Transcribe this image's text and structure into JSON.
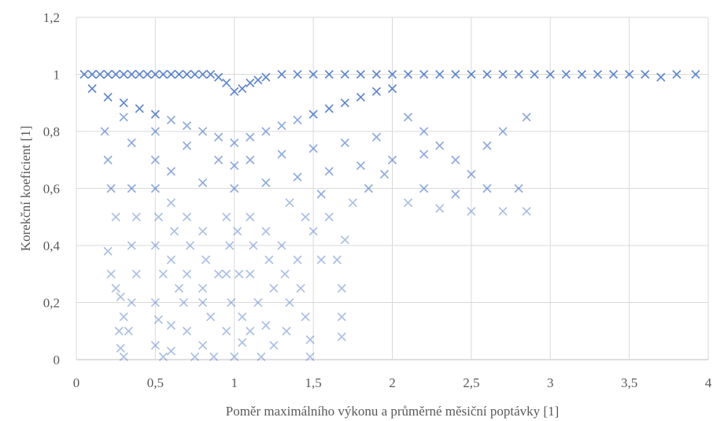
{
  "chart_data": {
    "type": "scatter",
    "xlabel": "Poměr maximálního  výkonu a průměrné měsiční poptávky [1]",
    "ylabel": "Korekční koeficient [1]",
    "xlim": [
      0,
      4
    ],
    "ylim": [
      0,
      1.2
    ],
    "x_ticks": [
      "0",
      "0,5",
      "1",
      "1,5",
      "2",
      "2,5",
      "3",
      "3,5",
      "4"
    ],
    "y_ticks": [
      "0",
      "0,2",
      "0,4",
      "0,6",
      "0,8",
      "1",
      "1,2"
    ],
    "grid": "major gridlines on both axes",
    "marker": "x",
    "marker_color": "#4472c4",
    "series": [
      {
        "points": [
          [
            0.05,
            1.0
          ],
          [
            0.1,
            1.0
          ],
          [
            0.15,
            1.0
          ],
          [
            0.2,
            1.0
          ],
          [
            0.25,
            1.0
          ],
          [
            0.3,
            1.0
          ],
          [
            0.35,
            1.0
          ],
          [
            0.4,
            1.0
          ],
          [
            0.45,
            1.0
          ],
          [
            0.5,
            1.0
          ],
          [
            0.55,
            1.0
          ],
          [
            0.6,
            1.0
          ],
          [
            0.65,
            1.0
          ],
          [
            0.7,
            1.0
          ],
          [
            0.75,
            1.0
          ],
          [
            0.8,
            1.0
          ],
          [
            0.85,
            1.0
          ],
          [
            0.9,
            0.99
          ],
          [
            0.95,
            0.97
          ],
          [
            1.0,
            0.94
          ],
          [
            1.05,
            0.95
          ],
          [
            1.1,
            0.97
          ],
          [
            1.15,
            0.98
          ],
          [
            1.2,
            0.99
          ],
          [
            1.3,
            1.0
          ],
          [
            1.4,
            1.0
          ],
          [
            1.5,
            1.0
          ],
          [
            1.6,
            1.0
          ],
          [
            1.7,
            1.0
          ],
          [
            1.8,
            1.0
          ],
          [
            1.9,
            1.0
          ],
          [
            2.0,
            1.0
          ],
          [
            2.1,
            1.0
          ],
          [
            2.2,
            1.0
          ],
          [
            2.3,
            1.0
          ],
          [
            2.4,
            1.0
          ],
          [
            2.5,
            1.0
          ],
          [
            2.6,
            1.0
          ],
          [
            2.7,
            1.0
          ],
          [
            2.8,
            1.0
          ],
          [
            2.9,
            1.0
          ],
          [
            3.0,
            1.0
          ],
          [
            3.1,
            1.0
          ],
          [
            3.2,
            1.0
          ],
          [
            3.3,
            1.0
          ],
          [
            3.4,
            1.0
          ],
          [
            3.5,
            1.0
          ],
          [
            3.6,
            1.0
          ],
          [
            3.7,
            0.99
          ],
          [
            3.8,
            1.0
          ],
          [
            3.92,
            1.0
          ],
          [
            0.1,
            0.95
          ],
          [
            0.2,
            0.92
          ],
          [
            0.3,
            0.9
          ],
          [
            0.4,
            0.88
          ],
          [
            0.5,
            0.86
          ],
          [
            0.6,
            0.84
          ],
          [
            0.7,
            0.82
          ],
          [
            0.8,
            0.8
          ],
          [
            0.9,
            0.78
          ],
          [
            1.0,
            0.76
          ],
          [
            1.1,
            0.78
          ],
          [
            1.2,
            0.8
          ],
          [
            1.3,
            0.82
          ],
          [
            1.4,
            0.84
          ],
          [
            1.5,
            0.86
          ],
          [
            1.6,
            0.88
          ],
          [
            1.7,
            0.9
          ],
          [
            1.8,
            0.92
          ],
          [
            1.9,
            0.94
          ],
          [
            2.0,
            0.95
          ],
          [
            0.3,
            0.85
          ],
          [
            0.5,
            0.8
          ],
          [
            0.7,
            0.75
          ],
          [
            0.9,
            0.7
          ],
          [
            1.0,
            0.68
          ],
          [
            1.1,
            0.7
          ],
          [
            1.3,
            0.72
          ],
          [
            1.5,
            0.74
          ],
          [
            1.7,
            0.76
          ],
          [
            1.9,
            0.78
          ],
          [
            0.5,
            0.7
          ],
          [
            0.6,
            0.66
          ],
          [
            0.8,
            0.62
          ],
          [
            1.0,
            0.6
          ],
          [
            1.2,
            0.62
          ],
          [
            1.4,
            0.64
          ],
          [
            1.6,
            0.66
          ],
          [
            1.8,
            0.68
          ],
          [
            2.0,
            0.7
          ],
          [
            2.2,
            0.72
          ],
          [
            2.1,
            0.85
          ],
          [
            2.2,
            0.8
          ],
          [
            2.3,
            0.75
          ],
          [
            2.4,
            0.7
          ],
          [
            2.5,
            0.65
          ],
          [
            2.6,
            0.75
          ],
          [
            2.7,
            0.8
          ],
          [
            2.85,
            0.85
          ],
          [
            2.1,
            0.55
          ],
          [
            2.3,
            0.53
          ],
          [
            2.5,
            0.52
          ],
          [
            2.7,
            0.52
          ],
          [
            2.85,
            0.52
          ],
          [
            2.2,
            0.6
          ],
          [
            2.4,
            0.58
          ],
          [
            2.6,
            0.6
          ],
          [
            2.8,
            0.6
          ],
          [
            0.18,
            0.8
          ],
          [
            0.2,
            0.7
          ],
          [
            0.22,
            0.6
          ],
          [
            0.25,
            0.5
          ],
          [
            0.2,
            0.38
          ],
          [
            0.22,
            0.3
          ],
          [
            0.25,
            0.25
          ],
          [
            0.28,
            0.22
          ],
          [
            0.3,
            0.15
          ],
          [
            0.27,
            0.1
          ],
          [
            0.28,
            0.04
          ],
          [
            0.3,
            0.01
          ],
          [
            0.35,
            0.76
          ],
          [
            0.35,
            0.6
          ],
          [
            0.38,
            0.5
          ],
          [
            0.35,
            0.4
          ],
          [
            0.38,
            0.3
          ],
          [
            0.35,
            0.2
          ],
          [
            0.33,
            0.1
          ],
          [
            0.5,
            0.6
          ],
          [
            0.52,
            0.5
          ],
          [
            0.5,
            0.4
          ],
          [
            0.55,
            0.3
          ],
          [
            0.5,
            0.2
          ],
          [
            0.52,
            0.14
          ],
          [
            0.5,
            0.05
          ],
          [
            0.55,
            0.01
          ],
          [
            0.6,
            0.55
          ],
          [
            0.62,
            0.45
          ],
          [
            0.6,
            0.35
          ],
          [
            0.65,
            0.25
          ],
          [
            0.6,
            0.12
          ],
          [
            0.6,
            0.03
          ],
          [
            0.7,
            0.5
          ],
          [
            0.72,
            0.4
          ],
          [
            0.7,
            0.3
          ],
          [
            0.68,
            0.2
          ],
          [
            0.7,
            0.1
          ],
          [
            0.75,
            0.01
          ],
          [
            0.8,
            0.45
          ],
          [
            0.82,
            0.35
          ],
          [
            0.8,
            0.25
          ],
          [
            0.85,
            0.15
          ],
          [
            0.8,
            0.05
          ],
          [
            0.87,
            0.01
          ],
          [
            0.95,
            0.5
          ],
          [
            0.97,
            0.4
          ],
          [
            0.95,
            0.3
          ],
          [
            0.98,
            0.2
          ],
          [
            0.95,
            0.1
          ],
          [
            1.0,
            0.01
          ],
          [
            1.02,
            0.45
          ],
          [
            1.03,
            0.3
          ],
          [
            1.05,
            0.15
          ],
          [
            1.05,
            0.06
          ],
          [
            1.1,
            0.5
          ],
          [
            1.12,
            0.4
          ],
          [
            1.1,
            0.3
          ],
          [
            1.15,
            0.2
          ],
          [
            1.1,
            0.1
          ],
          [
            1.17,
            0.01
          ],
          [
            1.2,
            0.45
          ],
          [
            1.22,
            0.35
          ],
          [
            1.25,
            0.25
          ],
          [
            1.2,
            0.12
          ],
          [
            1.25,
            0.05
          ],
          [
            1.3,
            0.4
          ],
          [
            1.32,
            0.3
          ],
          [
            1.35,
            0.2
          ],
          [
            1.33,
            0.1
          ],
          [
            1.4,
            0.35
          ],
          [
            1.42,
            0.25
          ],
          [
            1.45,
            0.15
          ],
          [
            1.48,
            0.07
          ],
          [
            1.48,
            0.01
          ],
          [
            1.5,
            0.45
          ],
          [
            1.55,
            0.35
          ],
          [
            1.6,
            0.5
          ],
          [
            1.65,
            0.35
          ],
          [
            1.68,
            0.25
          ],
          [
            1.68,
            0.15
          ],
          [
            1.68,
            0.08
          ],
          [
            1.7,
            0.42
          ],
          [
            0.8,
            0.2
          ],
          [
            0.9,
            0.3
          ],
          [
            1.35,
            0.55
          ],
          [
            1.45,
            0.5
          ],
          [
            1.55,
            0.58
          ],
          [
            1.75,
            0.55
          ],
          [
            1.85,
            0.6
          ],
          [
            1.95,
            0.65
          ]
        ]
      }
    ]
  }
}
